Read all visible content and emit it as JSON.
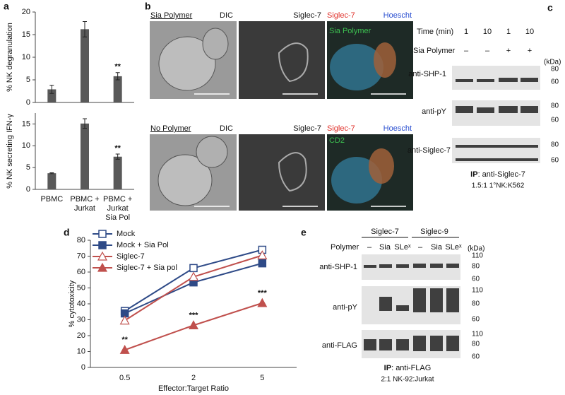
{
  "chart_data": [
    {
      "type": "bar",
      "label": "a",
      "ylabel": "% NK degranulation",
      "categories": [
        null,
        null,
        null
      ],
      "values": [
        2.9,
        16.2,
        5.8
      ],
      "errors": [
        0.9,
        1.7,
        0.8
      ],
      "annotations": [
        {
          "index": 2,
          "text": "**"
        }
      ],
      "color": "#595959",
      "ylim": [
        0,
        20
      ],
      "yticks": [
        0,
        5,
        10,
        15,
        20
      ]
    },
    {
      "type": "bar",
      "ylabel": "% NK secreting IFN-γ",
      "categories": [
        [
          "PBMC"
        ],
        [
          "PBMC +",
          "Jurkat"
        ],
        [
          "PBMC +",
          "Jurkat",
          "Sia Pol"
        ]
      ],
      "values": [
        3.7,
        15.1,
        7.5
      ],
      "errors": [
        0.1,
        1.1,
        0.6
      ],
      "annotations": [
        {
          "index": 2,
          "text": "**"
        }
      ],
      "color": "#595959",
      "ylim": [
        0,
        17.5
      ],
      "yticks": [
        0,
        5,
        10,
        15
      ]
    },
    {
      "type": "line",
      "label": "d",
      "xlabel": "Effector:Target Ratio",
      "ylabel": "% cytotoxicity",
      "categories": [
        "0.5",
        "2",
        "5"
      ],
      "series": [
        {
          "name": "Mock",
          "color": "#2e4a87",
          "marker": "square",
          "marker_fill": "#ffffff",
          "values": [
            35.5,
            62.5,
            74
          ]
        },
        {
          "name": "Mock + Sia Pol",
          "color": "#2e4a87",
          "marker": "square",
          "marker_fill": "#2e4a87",
          "values": [
            34,
            53.5,
            65.5
          ]
        },
        {
          "name": "Siglec-7",
          "color": "#c0504d",
          "marker": "triangle",
          "marker_fill": "#ffffff",
          "values": [
            29.5,
            57,
            70.5
          ]
        },
        {
          "name": "Siglec-7 + Sia pol",
          "color": "#c0504d",
          "marker": "triangle",
          "marker_fill": "#c0504d",
          "values": [
            11,
            26.5,
            40.5
          ]
        }
      ],
      "annotations": [
        {
          "series": 3,
          "index": 0,
          "text": "**"
        },
        {
          "series": 3,
          "index": 1,
          "text": "***"
        },
        {
          "series": 3,
          "index": 2,
          "text": "***"
        }
      ],
      "ylim": [
        0,
        80
      ],
      "yticks": [
        0,
        10,
        20,
        30,
        40,
        50,
        60,
        70,
        80
      ]
    }
  ],
  "panel_b": {
    "label": "b",
    "top": {
      "condition": "Sia Polymer",
      "dic": "DIC",
      "siglec": "Siglec-7",
      "merge_red": "Siglec-7",
      "merge_blue": "Hoescht",
      "merge_green": "Sia Polymer"
    },
    "bottom": {
      "condition": "No Polymer",
      "dic": "DIC",
      "siglec": "Siglec-7",
      "merge_red": "Siglec-7",
      "merge_blue": "Hoescht",
      "merge_green": "CD2"
    }
  },
  "panel_c": {
    "label": "c",
    "time_label": "Time (min)",
    "times": [
      "1",
      "10",
      "1",
      "10"
    ],
    "polymer_label": "Sia Polymer",
    "polymer": [
      "–",
      "–",
      "+",
      "+"
    ],
    "kda": "(kDa)",
    "blots": [
      {
        "name": "anti-SHP-1",
        "markers": [
          "80",
          "60"
        ]
      },
      {
        "name": "anti-pY",
        "markers": [
          "80",
          "60"
        ]
      },
      {
        "name": "anti-Siglec-7",
        "markers": [
          "80",
          "60"
        ]
      }
    ],
    "ip": "IP",
    "ip_target": ": anti-Siglec-7",
    "ratio": "1.5:1 1°NK:K562"
  },
  "panel_e": {
    "label": "e",
    "groups": [
      "Siglec-7",
      "Siglec-9"
    ],
    "polymer_label": "Polymer",
    "polymer": [
      "–",
      "Sia",
      "SLeˣ",
      "–",
      "Sia",
      "SLeˣ"
    ],
    "kda": "(kDa)",
    "blots": [
      {
        "name": "anti-SHP-1",
        "markers": [
          "110",
          "80",
          "60"
        ]
      },
      {
        "name": "anti-pY",
        "markers": [
          "110",
          "80",
          "60"
        ]
      },
      {
        "name": "anti-FLAG",
        "markers": [
          "110",
          "80",
          "60"
        ]
      }
    ],
    "ip": "IP",
    "ip_target": ": anti-FLAG",
    "ratio": "2:1 NK-92:Jurkat"
  }
}
